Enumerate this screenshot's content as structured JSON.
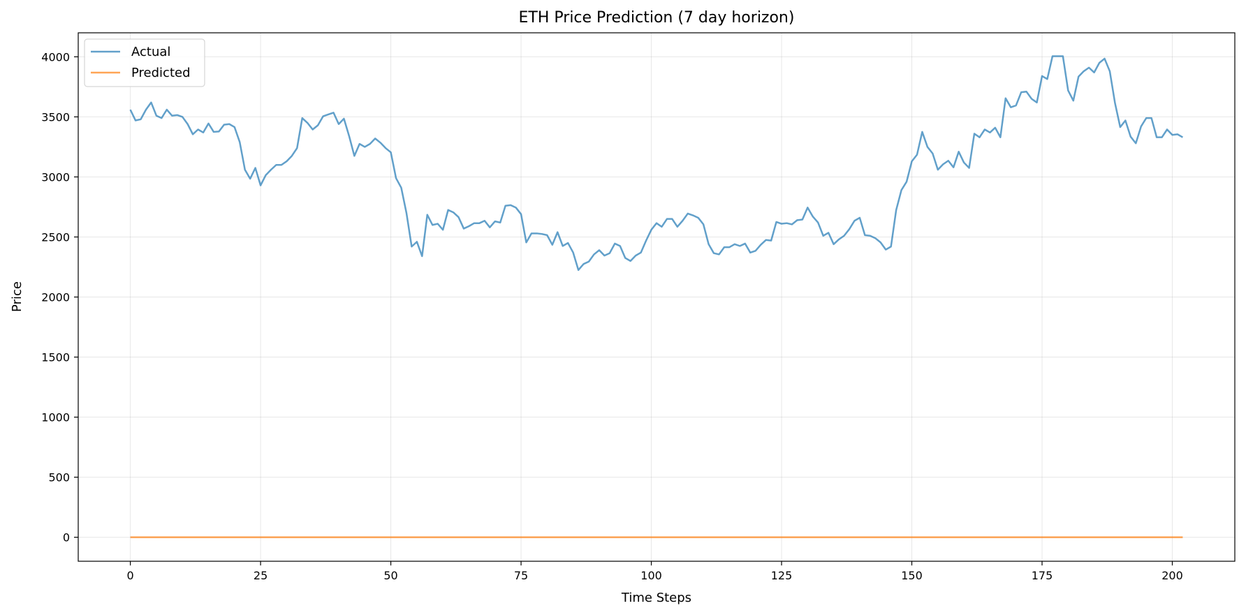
{
  "chart_data": {
    "type": "line",
    "title": "ETH Price Prediction (7 day horizon)",
    "xlabel": "Time Steps",
    "ylabel": "Price",
    "xlim": [
      -10,
      212
    ],
    "ylim": [
      -200,
      4200
    ],
    "xticks": [
      0,
      25,
      50,
      75,
      100,
      125,
      150,
      175,
      200
    ],
    "yticks": [
      0,
      500,
      1000,
      1500,
      2000,
      2500,
      3000,
      3500,
      4000
    ],
    "grid": true,
    "legend_position": "top-left",
    "series": [
      {
        "name": "Actual",
        "color": "#1f77b4",
        "x_start": 0,
        "x_step": 1,
        "values": [
          3560,
          3470,
          3480,
          3560,
          3620,
          3510,
          3490,
          3560,
          3510,
          3515,
          3500,
          3440,
          3355,
          3395,
          3370,
          3445,
          3375,
          3378,
          3435,
          3440,
          3415,
          3290,
          3060,
          2985,
          3075,
          2930,
          3015,
          3060,
          3100,
          3100,
          3130,
          3175,
          3240,
          3490,
          3450,
          3395,
          3430,
          3505,
          3520,
          3535,
          3440,
          3485,
          3340,
          3175,
          3275,
          3250,
          3275,
          3320,
          3285,
          3240,
          3205,
          2990,
          2910,
          2700,
          2420,
          2460,
          2340,
          2685,
          2600,
          2610,
          2560,
          2725,
          2705,
          2665,
          2570,
          2590,
          2615,
          2615,
          2635,
          2580,
          2630,
          2620,
          2760,
          2765,
          2745,
          2690,
          2455,
          2530,
          2530,
          2525,
          2515,
          2435,
          2540,
          2425,
          2450,
          2370,
          2225,
          2275,
          2295,
          2355,
          2390,
          2345,
          2365,
          2445,
          2425,
          2325,
          2300,
          2345,
          2370,
          2470,
          2560,
          2615,
          2585,
          2650,
          2650,
          2585,
          2635,
          2695,
          2680,
          2660,
          2605,
          2440,
          2365,
          2355,
          2415,
          2415,
          2440,
          2425,
          2445,
          2370,
          2385,
          2435,
          2475,
          2470,
          2625,
          2610,
          2615,
          2605,
          2640,
          2645,
          2745,
          2670,
          2620,
          2510,
          2535,
          2440,
          2480,
          2510,
          2565,
          2635,
          2660,
          2515,
          2510,
          2490,
          2455,
          2395,
          2420,
          2725,
          2890,
          2960,
          3130,
          3185,
          3375,
          3250,
          3195,
          3060,
          3105,
          3135,
          3080,
          3210,
          3120,
          3075,
          3360,
          3330,
          3395,
          3370,
          3410,
          3330,
          3655,
          3580,
          3595,
          3705,
          3710,
          3650,
          3620,
          3840,
          3815,
          4005,
          4005,
          4005,
          3720,
          3635,
          3835,
          3880,
          3910,
          3870,
          3950,
          3985,
          3880,
          3615,
          3415,
          3470,
          3335,
          3280,
          3420,
          3490,
          3490,
          3330,
          3330,
          3395,
          3350,
          3355,
          3330
        ]
      },
      {
        "name": "Predicted",
        "color": "#ff7f0e",
        "x_start": 0,
        "x_step": 1,
        "count": 203,
        "constant_value": 0
      }
    ]
  }
}
